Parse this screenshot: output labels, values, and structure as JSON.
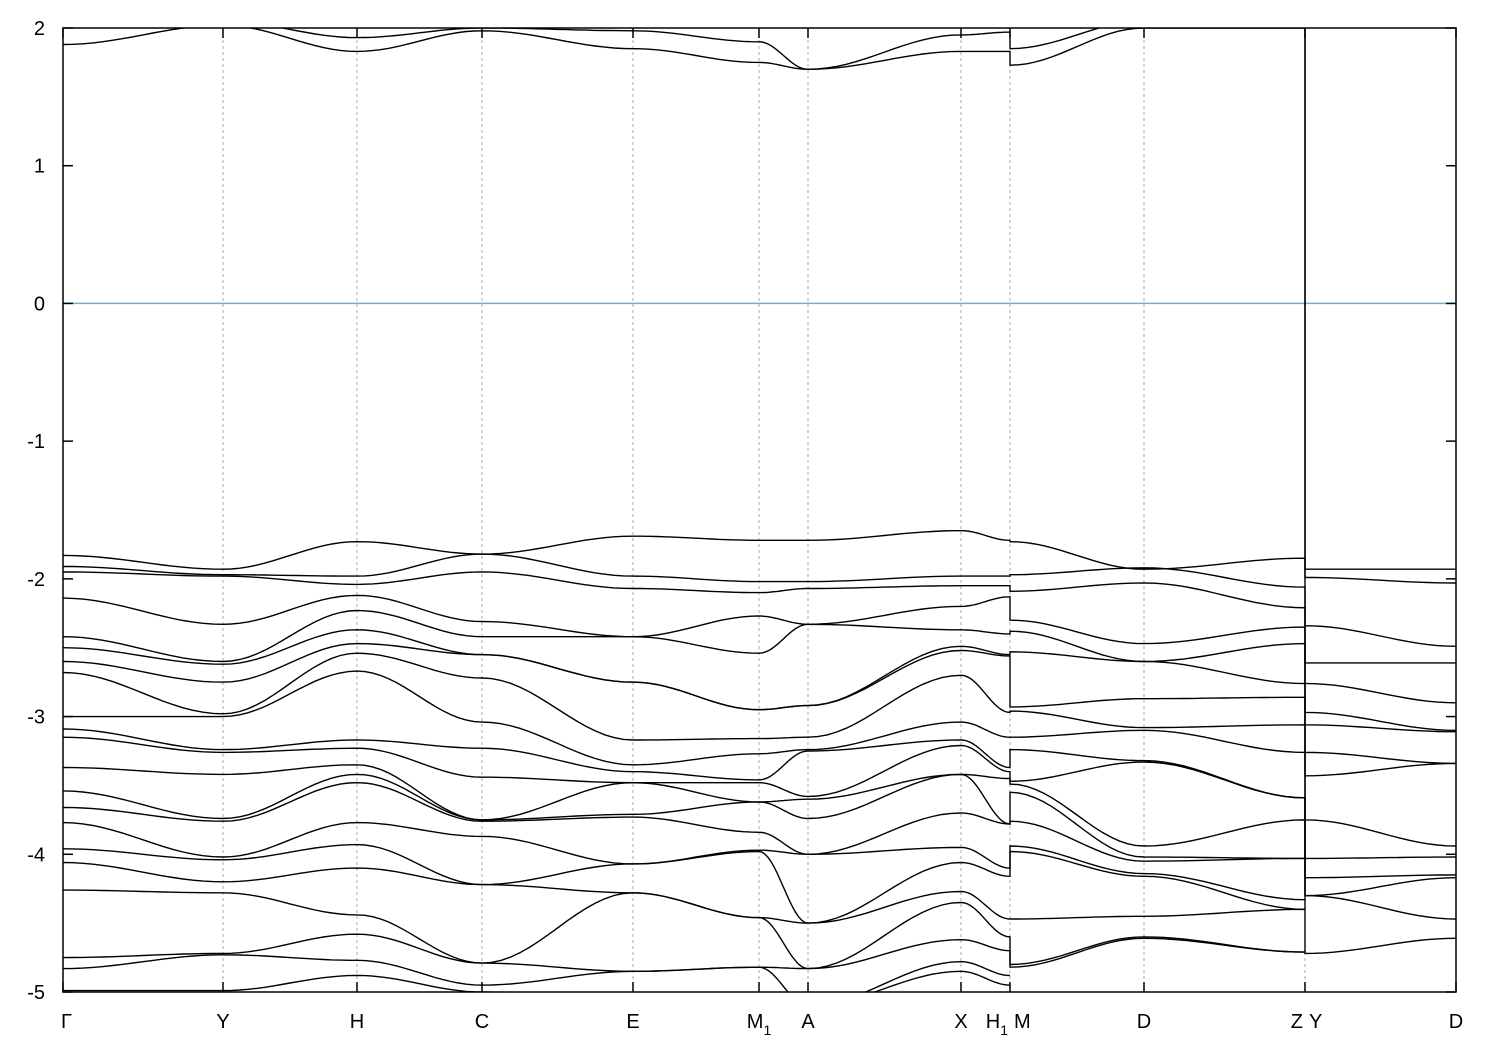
{
  "chart_data": {
    "type": "line",
    "title": "",
    "xlabel": "",
    "ylabel": "",
    "ylim": [
      -5,
      2
    ],
    "xlim": [
      0,
      13.93
    ],
    "yticks": [
      "2",
      "1",
      "0",
      "-1",
      "-2",
      "-3",
      "-4",
      "-5"
    ],
    "ytick_values": [
      2,
      1,
      0,
      -1,
      -2,
      -3,
      -4,
      -5
    ],
    "xticks": [
      {
        "k": 0,
        "label": "Γ",
        "sub": ""
      },
      {
        "k": 1.6,
        "label": "Y",
        "sub": ""
      },
      {
        "k": 2.94,
        "label": "H",
        "sub": ""
      },
      {
        "k": 4.19,
        "label": "C",
        "sub": ""
      },
      {
        "k": 5.7,
        "label": "E",
        "sub": ""
      },
      {
        "k": 6.96,
        "label": "M",
        "sub": "1"
      },
      {
        "k": 7.45,
        "label": "A",
        "sub": ""
      },
      {
        "k": 8.98,
        "label": "X",
        "sub": ""
      },
      {
        "k": 9.47,
        "label": "H",
        "sub": "1",
        "side": "left"
      },
      {
        "k": 9.47,
        "label": "M",
        "sub": "",
        "side": "right"
      },
      {
        "k": 10.81,
        "label": "D",
        "sub": ""
      },
      {
        "k": 12.42,
        "label": "Z",
        "sub": "",
        "side": "left"
      },
      {
        "k": 12.42,
        "label": "Y",
        "sub": "",
        "side": "right"
      },
      {
        "k": 13.93,
        "label": "D",
        "sub": ""
      }
    ],
    "grid": "vertical dashed at high-symmetry points",
    "fermi_level": {
      "value": 0,
      "color": "#56b4e9"
    },
    "band_color": "#000000",
    "segments": [
      {
        "k": [
          0,
          1.6,
          2.94,
          4.19,
          5.7,
          6.96,
          7.45,
          8.98,
          9.47
        ],
        "bands": [
          [
            1.88,
            2.02,
            1.83,
            1.98,
            1.85,
            1.75,
            1.7,
            1.83,
            1.83
          ],
          [
            2.1,
            2.05,
            1.93,
            2.0,
            1.98,
            1.9,
            1.7,
            1.95,
            1.97
          ],
          [
            -1.83,
            -1.93,
            -1.73,
            -1.82,
            -1.69,
            -1.72,
            -1.72,
            -1.65,
            -1.72
          ],
          [
            -1.91,
            -1.97,
            -1.98,
            -1.82,
            -1.98,
            -2.02,
            -2.02,
            -1.98,
            -1.98
          ],
          [
            -1.95,
            -1.98,
            -2.04,
            -1.95,
            -2.07,
            -2.1,
            -2.07,
            -2.05,
            -2.05
          ],
          [
            -2.14,
            -2.33,
            -2.12,
            -2.31,
            -2.42,
            -2.27,
            -2.33,
            -2.2,
            -2.13
          ],
          [
            -2.42,
            -2.6,
            -2.23,
            -2.42,
            -2.42,
            -2.54,
            -2.33,
            -2.37,
            -2.4
          ],
          [
            -2.5,
            -2.62,
            -2.37,
            -2.55,
            -2.75,
            -2.95,
            -2.92,
            -2.49,
            -2.55
          ],
          [
            -2.6,
            -2.75,
            -2.47,
            -2.55,
            -2.75,
            -2.95,
            -2.92,
            -2.52,
            -2.56
          ],
          [
            -2.68,
            -2.98,
            -2.54,
            -2.72,
            -3.17,
            -3.16,
            -3.15,
            -2.7,
            -2.97
          ],
          [
            -3.0,
            -3.0,
            -2.67,
            -3.04,
            -3.35,
            -3.27,
            -3.24,
            -3.04,
            -3.15
          ],
          [
            -3.09,
            -3.24,
            -3.17,
            -3.23,
            -3.4,
            -3.46,
            -3.25,
            -3.17,
            -3.37
          ],
          [
            -3.15,
            -3.26,
            -3.23,
            -3.44,
            -3.48,
            -3.48,
            -3.58,
            -3.21,
            -3.4
          ],
          [
            -3.37,
            -3.42,
            -3.35,
            -3.75,
            -3.48,
            -3.62,
            -3.6,
            -3.42,
            -3.45
          ],
          [
            -3.54,
            -3.74,
            -3.42,
            -3.75,
            -3.71,
            -3.62,
            -3.74,
            -3.42,
            -3.78
          ],
          [
            -3.66,
            -3.76,
            -3.48,
            -3.76,
            -3.73,
            -3.84,
            -4.0,
            -3.7,
            -3.78
          ],
          [
            -3.77,
            -4.02,
            -3.77,
            -3.87,
            -4.07,
            -3.97,
            -4.0,
            -3.95,
            -4.1
          ],
          [
            -3.96,
            -4.04,
            -3.93,
            -4.22,
            -4.07,
            -3.98,
            -4.5,
            -4.06,
            -4.16
          ],
          [
            -4.06,
            -4.2,
            -4.1,
            -4.22,
            -4.28,
            -4.46,
            -4.5,
            -4.27,
            -4.47
          ],
          [
            -4.26,
            -4.28,
            -4.44,
            -4.79,
            -4.28,
            -4.46,
            -4.83,
            -4.35,
            -4.6
          ],
          [
            -4.75,
            -4.72,
            -4.58,
            -4.79,
            -4.85,
            -4.82,
            -4.83,
            -4.62,
            -4.7
          ],
          [
            -4.83,
            -4.73,
            -4.77,
            -4.95,
            -4.85,
            -4.82,
            -5.1,
            -4.78,
            -4.88
          ],
          [
            -4.99,
            -4.99,
            -4.88,
            -5.0,
            -5.1,
            -5.1,
            -5.1,
            -4.85,
            -4.95
          ]
        ]
      },
      {
        "k": [
          9.47,
          10.81,
          12.42
        ],
        "bands": [
          [
            1.73,
            2.0,
            2.0
          ],
          [
            1.85,
            2.05,
            2.02
          ],
          [
            -1.73,
            -1.93,
            -1.85
          ],
          [
            -1.97,
            -1.92,
            -2.06
          ],
          [
            -2.09,
            -2.03,
            -2.21
          ],
          [
            -2.3,
            -2.47,
            -2.35
          ],
          [
            -2.38,
            -2.6,
            -2.47
          ],
          [
            -2.53,
            -2.6,
            -2.76
          ],
          [
            -2.93,
            -2.87,
            -2.86
          ],
          [
            -2.96,
            -3.08,
            -3.06
          ],
          [
            -3.15,
            -3.1,
            -3.26
          ],
          [
            -3.24,
            -3.32,
            -3.59
          ],
          [
            -3.47,
            -3.33,
            -3.59
          ],
          [
            -3.49,
            -3.94,
            -3.75
          ],
          [
            -3.55,
            -4.02,
            -4.03
          ],
          [
            -3.76,
            -4.05,
            -4.03
          ],
          [
            -3.94,
            -4.14,
            -4.33
          ],
          [
            -3.98,
            -4.16,
            -4.4
          ],
          [
            -4.47,
            -4.45,
            -4.4
          ],
          [
            -4.8,
            -4.6,
            -4.71
          ],
          [
            -4.82,
            -4.61,
            -4.71
          ]
        ]
      },
      {
        "k": [
          12.42,
          13.93
        ],
        "bands": [
          [
            -1.93,
            -1.93
          ],
          [
            -1.99,
            -2.03
          ],
          [
            -2.34,
            -2.49
          ],
          [
            -2.61,
            -2.61
          ],
          [
            -2.76,
            -2.9
          ],
          [
            -2.97,
            -3.1
          ],
          [
            -3.06,
            -3.11
          ],
          [
            -3.26,
            -3.34
          ],
          [
            -3.43,
            -3.34
          ],
          [
            -3.75,
            -3.94
          ],
          [
            -4.03,
            -4.02
          ],
          [
            -4.17,
            -4.15
          ],
          [
            -4.3,
            -4.17
          ],
          [
            -4.3,
            -4.47
          ],
          [
            -4.72,
            -4.61
          ]
        ]
      }
    ]
  }
}
